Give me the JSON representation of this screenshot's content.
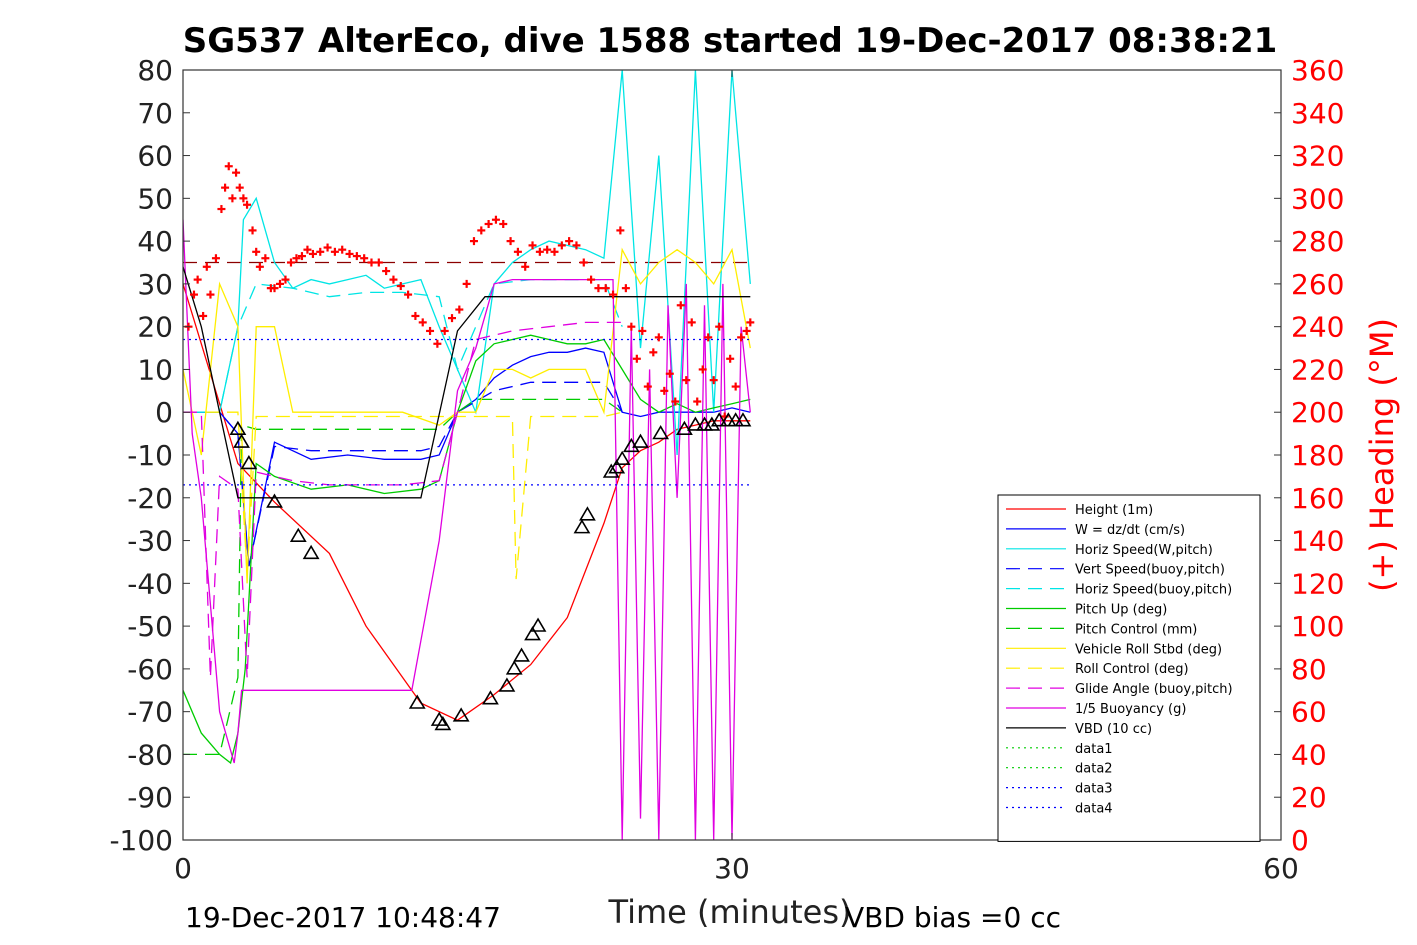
{
  "chart_data": {
    "type": "line",
    "title": "SG537 AlterEco, dive 1588 started 19-Dec-2017 08:38:21",
    "xlabel": "Time (minutes)",
    "ylabel": "",
    "ylabel_right": "(+) Heading (°M)",
    "xlim": [
      0,
      60
    ],
    "ylim": [
      -100,
      80
    ],
    "ylim_right": [
      0,
      360
    ],
    "x_ticks": [
      "0",
      "30",
      "60"
    ],
    "y_ticks": [
      "80",
      "70",
      "60",
      "50",
      "40",
      "30",
      "20",
      "10",
      "0",
      "-10",
      "-20",
      "-30",
      "-40",
      "-50",
      "-60",
      "-70",
      "-80",
      "-90",
      "-100"
    ],
    "y_ticks_right": [
      "360",
      "340",
      "320",
      "300",
      "280",
      "260",
      "240",
      "220",
      "200",
      "180",
      "160",
      "140",
      "120",
      "100",
      "80",
      "60",
      "40",
      "20",
      "0"
    ],
    "footer_left": "19-Dec-2017 10:48:47",
    "footer_right": "VBD bias =0 cc",
    "legend_position": "right",
    "colors": {
      "height": "#ff0000",
      "w": "#0000ff",
      "horiz": "#00e5e5",
      "pitch": "#00cc00",
      "roll": "#ffee00",
      "glide": "#e000e0",
      "vbd": "#000000",
      "heading": "#ff0000"
    },
    "series": [
      {
        "name": "Height (1m)",
        "style": "solid",
        "color": "#ff0000",
        "x": [
          0,
          3,
          5,
          8,
          10,
          13,
          15,
          17,
          19,
          21,
          23,
          24,
          25,
          26,
          27,
          28,
          29,
          30,
          31
        ],
        "y": [
          30,
          -12,
          -21,
          -33,
          -50,
          -68,
          -72,
          -66,
          -59,
          -48,
          -26,
          -13,
          -9,
          -7,
          -4,
          -3,
          -2,
          -2,
          -2
        ]
      },
      {
        "name": "W = dz/dt (cm/s)",
        "style": "solid",
        "color": "#0000ff",
        "x": [
          0,
          2,
          3,
          3.6,
          5,
          7,
          9,
          11,
          13,
          14,
          15,
          16,
          17,
          18,
          19,
          20,
          21,
          22,
          23,
          24,
          25,
          26,
          27,
          28,
          29,
          30,
          31
        ],
        "y": [
          0,
          0,
          -5,
          -36,
          -7,
          -11,
          -10,
          -11,
          -11,
          -10,
          0,
          3,
          8,
          11,
          13,
          14,
          14,
          15,
          14,
          0,
          -1,
          0,
          0,
          0,
          0,
          1,
          0
        ]
      },
      {
        "name": "Horiz Speed(W,pitch)",
        "style": "solid",
        "color": "#00e5e5",
        "x": [
          0,
          2,
          3,
          3.3,
          4,
          5,
          6,
          7,
          8,
          9,
          10,
          11,
          12,
          13,
          14,
          15,
          16,
          17,
          18,
          19,
          20,
          21,
          22,
          23,
          24,
          25,
          26,
          27,
          28,
          29,
          30,
          31
        ],
        "y": [
          0,
          0,
          20,
          45,
          50,
          35,
          29,
          31,
          30,
          31,
          32,
          29,
          30,
          31,
          20,
          10,
          0,
          30,
          35,
          38,
          40,
          39,
          38,
          36,
          80,
          15,
          60,
          -10,
          80,
          0,
          80,
          30
        ]
      },
      {
        "name": "Vert Speed(buoy,pitch)",
        "style": "dashed",
        "color": "#0000ff",
        "x": [
          0,
          2,
          3,
          3.6,
          5,
          7,
          9,
          11,
          13,
          14,
          15,
          17,
          19,
          21,
          23,
          24
        ],
        "y": [
          0,
          0,
          -5,
          -36,
          -8,
          -9,
          -9,
          -9,
          -9,
          -8,
          0,
          5,
          7,
          7,
          7,
          0
        ]
      },
      {
        "name": "Horiz Speed(buoy,pitch)",
        "style": "dashed",
        "color": "#00e5e5",
        "x": [
          0,
          2,
          3,
          4,
          6,
          8,
          10,
          12,
          14,
          15,
          17,
          19,
          21,
          23,
          24
        ],
        "y": [
          0,
          0,
          20,
          30,
          29,
          27,
          28,
          28,
          27,
          10,
          30,
          31,
          31,
          31,
          20
        ]
      },
      {
        "name": "Pitch Up (deg)",
        "style": "solid",
        "color": "#00cc00",
        "x": [
          0,
          1,
          2,
          2.6,
          3,
          3.4,
          4,
          5,
          7,
          9,
          11,
          13,
          14,
          15,
          16,
          17,
          18,
          19,
          20,
          21,
          22,
          23,
          24,
          25,
          26,
          27,
          28,
          29,
          30,
          31
        ],
        "y": [
          -65,
          -75,
          -80,
          -82,
          -75,
          -60,
          -12,
          -15,
          -18,
          -17,
          -19,
          -18,
          -16,
          0,
          12,
          16,
          17,
          18,
          17,
          16,
          16,
          17,
          10,
          3,
          0,
          2,
          0,
          1,
          2,
          3
        ]
      },
      {
        "name": "Pitch Control (mm)",
        "style": "dashed",
        "color": "#00cc00",
        "x": [
          0,
          2,
          3,
          3.2,
          4,
          10,
          14,
          15,
          16,
          23,
          24
        ],
        "y": [
          -80,
          -80,
          -62,
          -3,
          -4,
          -4,
          -4,
          0,
          3,
          3,
          0
        ]
      },
      {
        "name": "Vehicle Roll Stbd (deg)",
        "style": "solid",
        "color": "#ffee00",
        "x": [
          0,
          1,
          2,
          3,
          3.5,
          4,
          5,
          6,
          8,
          10,
          12,
          14,
          15,
          16,
          17,
          18,
          19,
          20,
          22,
          23,
          24,
          25,
          26,
          27,
          28,
          29,
          30,
          31
        ],
        "y": [
          10,
          -10,
          30,
          20,
          -40,
          20,
          20,
          0,
          0,
          0,
          0,
          -3,
          0,
          0,
          10,
          10,
          8,
          10,
          10,
          0,
          38,
          30,
          35,
          38,
          35,
          30,
          38,
          15
        ]
      },
      {
        "name": "Roll Control (deg)",
        "style": "dashed",
        "color": "#ffee00",
        "x": [
          0,
          3,
          3.5,
          4,
          10,
          14,
          17,
          18,
          18.2,
          19,
          23,
          24
        ],
        "y": [
          0,
          0,
          -38,
          -1,
          -1,
          -1,
          -1,
          -1,
          -39,
          -1,
          -1,
          0
        ]
      },
      {
        "name": "Glide Angle (buoy,pitch)",
        "style": "dashed",
        "color": "#e000e0",
        "x": [
          0,
          1,
          1.5,
          2,
          3,
          3.5,
          4,
          6,
          8,
          10,
          12,
          14,
          15,
          16,
          17,
          18,
          20,
          22,
          24
        ],
        "y": [
          0,
          0,
          -62,
          -15,
          -18,
          -62,
          -14,
          -16,
          -17,
          -17,
          -17,
          -16,
          0,
          17,
          18,
          19,
          20,
          21,
          21
        ]
      },
      {
        "name": "1/5 Buoyancy (g)",
        "style": "solid",
        "color": "#e000e0",
        "x": [
          0,
          0.5,
          1,
          2,
          2.8,
          3,
          3.2,
          4,
          7,
          10,
          12.5,
          14,
          15,
          16,
          17,
          18,
          20,
          22,
          23.5,
          24,
          24.5,
          25,
          25.5,
          26,
          26.5,
          27,
          27.5,
          28,
          28.5,
          29,
          29.5,
          30,
          30.5,
          31
        ],
        "y": [
          45,
          -5,
          -20,
          -70,
          -82,
          -75,
          -65,
          -65,
          -65,
          -65,
          -65,
          -30,
          5,
          15,
          30,
          31,
          31,
          31,
          31,
          -100,
          20,
          -95,
          10,
          -100,
          25,
          -20,
          30,
          -100,
          25,
          -100,
          30,
          -100,
          20,
          0
        ]
      },
      {
        "name": "VBD (10 cc)",
        "style": "solid",
        "color": "#000000",
        "x": [
          0,
          1,
          3,
          3.3,
          13,
          15,
          16.5,
          30,
          31
        ],
        "y": [
          34,
          20,
          -20,
          -20,
          -20,
          19,
          27,
          27,
          27
        ]
      },
      {
        "name": "data1",
        "style": "dotted",
        "color": "#00cc00",
        "x": [],
        "y": []
      },
      {
        "name": "data2",
        "style": "dotted",
        "color": "#00cc00",
        "x": [],
        "y": []
      },
      {
        "name": "data3",
        "style": "dotted",
        "color": "#0000ff",
        "x": [
          0,
          31
        ],
        "y": [
          17,
          17
        ]
      },
      {
        "name": "data4",
        "style": "dotted",
        "color": "#0000ff",
        "x": [
          0,
          31
        ],
        "y": [
          -17,
          -17
        ]
      }
    ],
    "reference_lines": [
      {
        "color": "#8b0000",
        "style": "dashed",
        "y": 35,
        "x": [
          0,
          31
        ]
      }
    ],
    "heading_points": {
      "color": "#ff0000",
      "x": [
        0.3,
        0.6,
        0.8,
        1.1,
        1.3,
        1.5,
        1.8,
        2.1,
        2.3,
        2.5,
        2.7,
        2.9,
        3.1,
        3.3,
        3.5,
        3.8,
        4.0,
        4.2,
        4.5,
        4.8,
        5.0,
        5.3,
        5.6,
        5.9,
        6.2,
        6.5,
        6.8,
        7.1,
        7.5,
        7.9,
        8.3,
        8.7,
        9.1,
        9.5,
        9.9,
        10.3,
        10.7,
        11.1,
        11.5,
        11.9,
        12.3,
        12.7,
        13.1,
        13.5,
        13.9,
        14.3,
        14.7,
        15.1,
        15.5,
        15.9,
        16.3,
        16.7,
        17.1,
        17.5,
        17.9,
        18.3,
        18.7,
        19.1,
        19.5,
        19.9,
        20.3,
        20.7,
        21.1,
        21.5,
        21.9,
        22.3,
        22.7,
        23.1,
        23.5,
        23.9,
        24.2,
        24.5,
        24.8,
        25.1,
        25.4,
        25.7,
        26.0,
        26.3,
        26.6,
        26.9,
        27.2,
        27.5,
        27.8,
        28.1,
        28.4,
        28.7,
        29.0,
        29.3,
        29.6,
        29.9,
        30.2,
        30.5,
        30.8,
        31.0
      ],
      "y": [
        240,
        255,
        262,
        245,
        268,
        255,
        272,
        295,
        305,
        315,
        300,
        312,
        305,
        300,
        297,
        285,
        275,
        268,
        272,
        258,
        258,
        260,
        262,
        270,
        272,
        273,
        276,
        274,
        275,
        277,
        275,
        276,
        274,
        273,
        272,
        270,
        270,
        266,
        262,
        259,
        255,
        245,
        242,
        238,
        232,
        238,
        244,
        248,
        260,
        280,
        285,
        288,
        290,
        288,
        280,
        275,
        268,
        278,
        275,
        276,
        275,
        278,
        280,
        278,
        270,
        262,
        258,
        258,
        255,
        285,
        258,
        240,
        225,
        238,
        212,
        228,
        235,
        210,
        218,
        205,
        250,
        215,
        242,
        205,
        220,
        235,
        215,
        240,
        198,
        225,
        212,
        235,
        238,
        242
      ]
    },
    "height_markers": {
      "color": "#000000",
      "x": [
        3.0,
        3.2,
        3.6,
        5.0,
        6.3,
        7.0,
        12.8,
        14.0,
        14.2,
        15.2,
        16.8,
        17.7,
        18.1,
        18.5,
        19.1,
        19.4,
        21.8,
        22.1,
        23.4,
        23.7,
        24.0,
        24.5,
        25.0,
        26.1,
        27.4,
        28.0,
        28.5,
        28.9,
        29.3,
        29.8,
        30.2,
        30.6
      ],
      "y": [
        -4,
        -7,
        -12,
        -21,
        -29,
        -33,
        -68,
        -72,
        -73,
        -71,
        -67,
        -64,
        -60,
        -57,
        -52,
        -50,
        -27,
        -24,
        -14,
        -13,
        -11,
        -8,
        -7,
        -5,
        -4,
        -3,
        -3,
        -3,
        -2,
        -2,
        -2,
        -2
      ]
    }
  }
}
